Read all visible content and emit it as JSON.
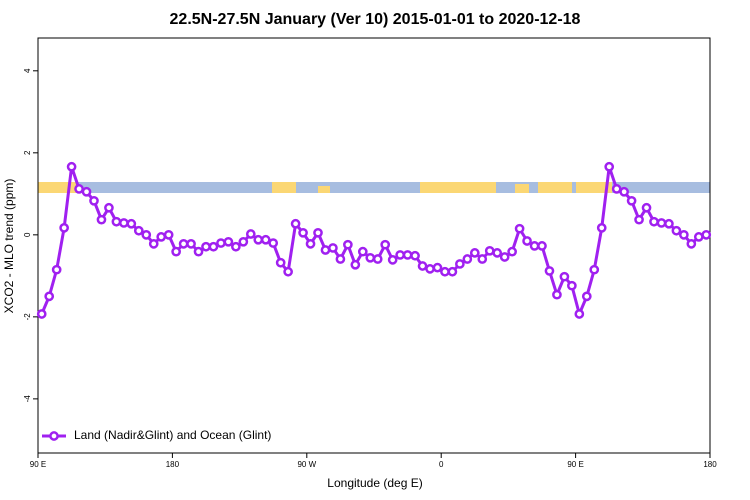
{
  "chart_data": {
    "type": "line",
    "title": "22.5N-27.5N January (Ver 10)   2015-01-01 to 2020-12-18",
    "x_label": "Longitude (deg E)",
    "y_label": "XCO2 - MLO trend (ppm)",
    "xlim": [
      90,
      540
    ],
    "ylim": [
      -5.32,
      4.8
    ],
    "xticks": [
      {
        "value": 90,
        "label": "90 E"
      },
      {
        "value": 180,
        "label": "180"
      },
      {
        "value": 270,
        "label": "90 W"
      },
      {
        "value": 360,
        "label": "0"
      },
      {
        "value": 450,
        "label": "90 E"
      },
      {
        "value": 540,
        "label": "180"
      }
    ],
    "yticks": [
      -4,
      -2,
      0,
      2,
      4
    ],
    "legend_position": "bottom-left",
    "x": [
      92.5,
      97.5,
      102.5,
      107.5,
      112.5,
      117.5,
      122.5,
      127.5,
      132.5,
      137.5,
      142.5,
      147.5,
      152.5,
      157.5,
      162.5,
      167.5,
      172.5,
      177.5,
      182.5,
      187.5,
      192.5,
      197.5,
      202.5,
      207.5,
      212.5,
      217.5,
      222.5,
      227.5,
      232.5,
      237.5,
      242.5,
      247.5,
      252.5,
      257.5,
      262.5,
      267.5,
      272.5,
      277.5,
      282.5,
      287.5,
      292.5,
      297.5,
      302.5,
      307.5,
      312.5,
      317.5,
      322.5,
      327.5,
      332.5,
      337.5,
      342.5,
      347.5,
      352.5,
      357.5,
      362.5,
      367.5,
      372.5,
      377.5,
      382.5,
      387.5,
      392.5,
      397.5,
      402.5,
      407.5,
      412.5,
      417.5,
      422.5,
      427.5,
      432.5,
      437.5,
      442.5,
      447.5,
      452.5,
      457.5,
      462.5,
      467.5,
      472.5,
      477.5,
      482.5,
      487.5,
      492.5,
      497.5,
      502.5,
      507.5,
      512.5,
      517.5,
      522.5,
      527.5,
      532.5,
      537.5
    ],
    "series": [
      {
        "name": "Land (Nadir&Glint) and Ocean (Glint)",
        "color": "#a020f0",
        "values": [
          -1.93,
          -1.5,
          -0.85,
          0.17,
          1.66,
          1.12,
          1.05,
          0.83,
          0.37,
          0.66,
          0.32,
          0.29,
          0.27,
          0.1,
          0.0,
          -0.22,
          -0.05,
          0.0,
          -0.41,
          -0.22,
          -0.22,
          -0.41,
          -0.29,
          -0.29,
          -0.2,
          -0.17,
          -0.29,
          -0.17,
          0.02,
          -0.12,
          -0.12,
          -0.2,
          -0.68,
          -0.9,
          0.27,
          0.05,
          -0.22,
          0.05,
          -0.37,
          -0.32,
          -0.59,
          -0.24,
          -0.73,
          -0.41,
          -0.56,
          -0.59,
          -0.24,
          -0.61,
          -0.49,
          -0.49,
          -0.51,
          -0.76,
          -0.83,
          -0.8,
          -0.9,
          -0.9,
          -0.71,
          -0.59,
          -0.44,
          -0.59,
          -0.39,
          -0.44,
          -0.54,
          -0.41,
          0.15,
          -0.15,
          -0.27,
          -0.27,
          -0.88,
          -1.46,
          -1.02,
          -1.24,
          -1.93,
          -1.5,
          -0.85,
          0.17,
          1.66,
          1.12,
          1.05,
          0.83,
          0.37,
          0.66,
          0.32,
          0.29,
          0.27,
          0.1,
          0.0,
          -0.22,
          -0.05,
          0.0
        ]
      }
    ]
  }
}
